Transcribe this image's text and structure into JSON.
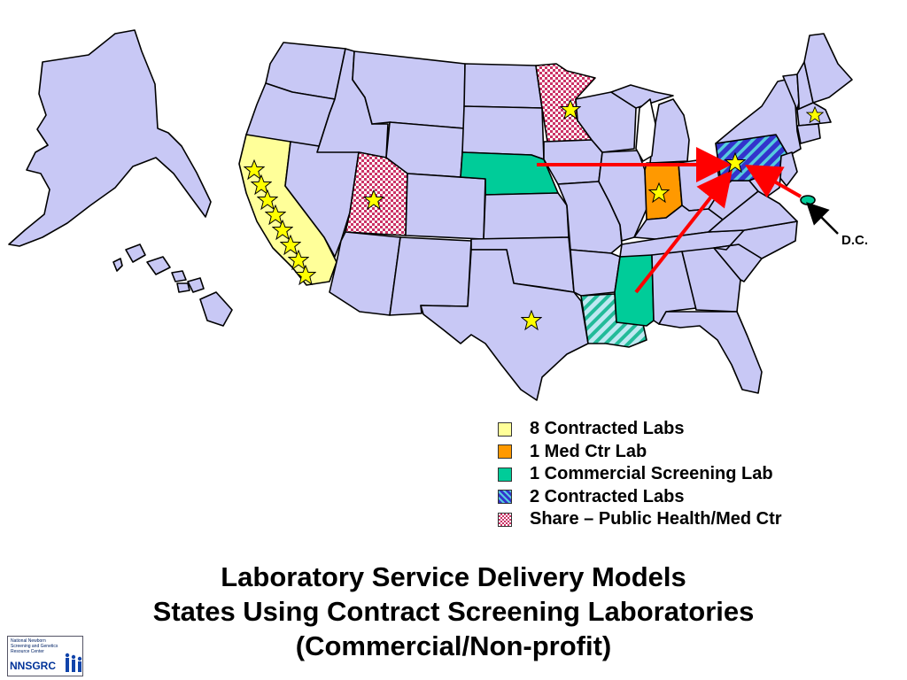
{
  "map": {
    "annotation": "D.C.",
    "colors": {
      "state_fill": "#c8c8f5",
      "state_border": "#000000",
      "contracted_8": "#ffff99",
      "med_ctr": "#ff9900",
      "commercial": "#00cc99",
      "contracted_2_stripe": "#3333cc",
      "share_check": "#cc3366",
      "arrow": "#ff0000",
      "star": "#ffff00"
    },
    "highlighted_states": {
      "contracted_8": [
        "California"
      ],
      "med_ctr": [
        "Indiana"
      ],
      "commercial": [
        "Nebraska",
        "Mississippi"
      ],
      "contracted_2": [
        "Pennsylvania",
        "Louisiana"
      ],
      "share": [
        "Utah",
        "Minnesota"
      ]
    },
    "star_icons": [
      "star-icon"
    ],
    "arrow_icons": [
      "arrow-icon"
    ]
  },
  "legend": {
    "items": [
      {
        "label": "8 Contracted Labs",
        "color": "#ffff99",
        "pattern": "solid"
      },
      {
        "label": "1 Med Ctr Lab",
        "color": "#ff9900",
        "pattern": "solid"
      },
      {
        "label": "1 Commercial Screening  Lab",
        "color": "#00cc99",
        "pattern": "solid"
      },
      {
        "label": "2 Contracted Labs",
        "color": "#3333cc",
        "pattern": "stripes"
      },
      {
        "label": "Share – Public Health/Med Ctr",
        "color": "#cc3366",
        "pattern": "checker"
      }
    ]
  },
  "title": {
    "line1": "Laboratory Service Delivery Models",
    "line2": "States Using Contract Screening Laboratories",
    "line3": "(Commercial/Non-profit)"
  },
  "logo": {
    "name": "NNSGRC",
    "subtitle": "National Newborn Screening and Genetics Resource Center"
  }
}
